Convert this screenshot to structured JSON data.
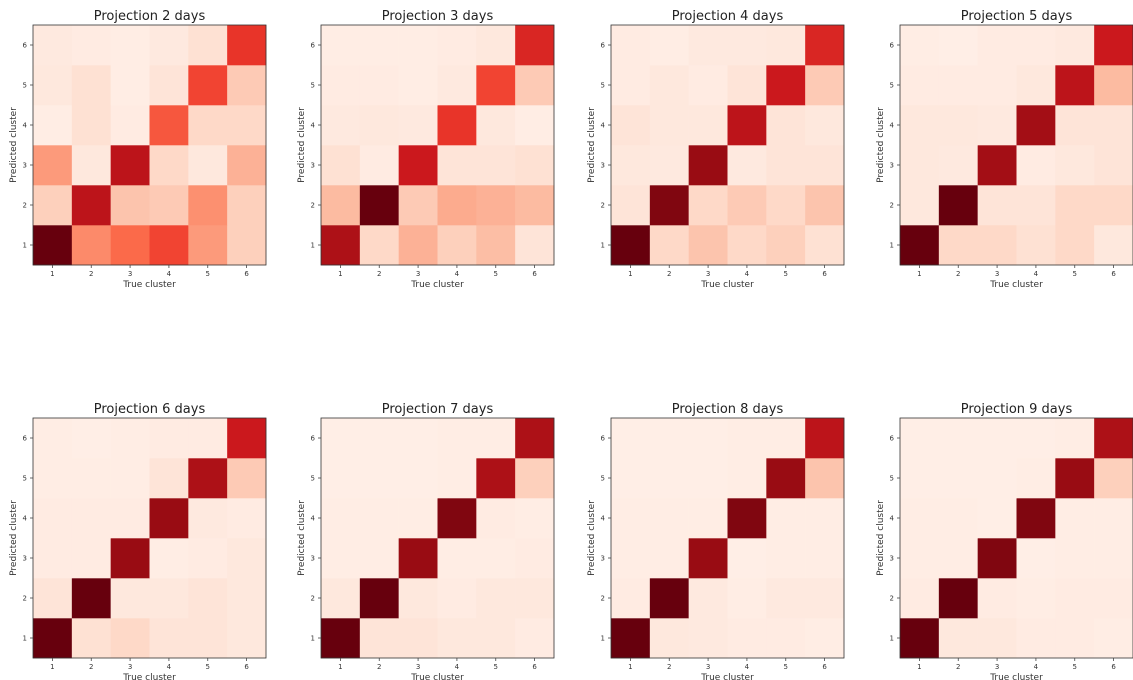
{
  "chart_data": [
    {
      "type": "heatmap",
      "title": "Projection 2 days",
      "xlabel": "True cluster",
      "ylabel": "Predicted cluster",
      "x_ticks": [
        "1",
        "2",
        "3",
        "4",
        "5",
        "6"
      ],
      "y_ticks": [
        "1",
        "2",
        "3",
        "4",
        "5",
        "6"
      ],
      "y_order": "bottom-to-top",
      "values": [
        [
          1.0,
          0.4,
          0.5,
          0.6,
          0.35,
          0.18
        ],
        [
          0.18,
          0.8,
          0.22,
          0.2,
          0.38,
          0.18
        ],
        [
          0.35,
          0.08,
          0.8,
          0.15,
          0.08,
          0.28
        ],
        [
          0.05,
          0.12,
          0.06,
          0.55,
          0.15,
          0.15
        ],
        [
          0.08,
          0.12,
          0.05,
          0.1,
          0.6,
          0.2
        ],
        [
          0.07,
          0.06,
          0.05,
          0.07,
          0.12,
          0.65
        ]
      ]
    },
    {
      "type": "heatmap",
      "title": "Projection 3 days",
      "xlabel": "True cluster",
      "ylabel": "Predicted cluster",
      "x_ticks": [
        "1",
        "2",
        "3",
        "4",
        "5",
        "6"
      ],
      "y_ticks": [
        "1",
        "2",
        "3",
        "4",
        "5",
        "6"
      ],
      "y_order": "bottom-to-top",
      "values": [
        [
          0.85,
          0.15,
          0.28,
          0.18,
          0.24,
          0.1
        ],
        [
          0.25,
          1.0,
          0.2,
          0.3,
          0.28,
          0.25
        ],
        [
          0.12,
          0.06,
          0.75,
          0.1,
          0.1,
          0.12
        ],
        [
          0.07,
          0.08,
          0.07,
          0.65,
          0.08,
          0.05
        ],
        [
          0.06,
          0.06,
          0.05,
          0.07,
          0.6,
          0.2
        ],
        [
          0.05,
          0.05,
          0.05,
          0.06,
          0.08,
          0.7
        ]
      ]
    },
    {
      "type": "heatmap",
      "title": "Projection 4 days",
      "xlabel": "True cluster",
      "ylabel": "Predicted cluster",
      "x_ticks": [
        "1",
        "2",
        "3",
        "4",
        "5",
        "6"
      ],
      "y_ticks": [
        "1",
        "2",
        "3",
        "4",
        "5",
        "6"
      ],
      "y_order": "bottom-to-top",
      "values": [
        [
          1.0,
          0.15,
          0.22,
          0.15,
          0.18,
          0.12
        ],
        [
          0.1,
          0.95,
          0.15,
          0.2,
          0.15,
          0.22
        ],
        [
          0.08,
          0.07,
          0.9,
          0.07,
          0.1,
          0.1
        ],
        [
          0.1,
          0.08,
          0.08,
          0.8,
          0.1,
          0.08
        ],
        [
          0.06,
          0.08,
          0.06,
          0.1,
          0.75,
          0.2
        ],
        [
          0.06,
          0.05,
          0.07,
          0.07,
          0.08,
          0.7
        ]
      ]
    },
    {
      "type": "heatmap",
      "title": "Projection 5 days",
      "xlabel": "True cluster",
      "ylabel": "Predicted cluster",
      "x_ticks": [
        "1",
        "2",
        "3",
        "4",
        "5",
        "6"
      ],
      "y_ticks": [
        "1",
        "2",
        "3",
        "4",
        "5",
        "6"
      ],
      "y_order": "bottom-to-top",
      "values": [
        [
          1.0,
          0.15,
          0.15,
          0.12,
          0.15,
          0.08
        ],
        [
          0.08,
          1.0,
          0.1,
          0.1,
          0.15,
          0.15
        ],
        [
          0.08,
          0.07,
          0.88,
          0.06,
          0.08,
          0.1
        ],
        [
          0.08,
          0.08,
          0.07,
          0.88,
          0.1,
          0.1
        ],
        [
          0.06,
          0.06,
          0.06,
          0.08,
          0.8,
          0.25
        ],
        [
          0.05,
          0.04,
          0.06,
          0.06,
          0.07,
          0.75
        ]
      ]
    },
    {
      "type": "heatmap",
      "title": "Projection 6 days",
      "xlabel": "True cluster",
      "ylabel": "Predicted cluster",
      "x_ticks": [
        "1",
        "2",
        "3",
        "4",
        "5",
        "6"
      ],
      "y_ticks": [
        "1",
        "2",
        "3",
        "4",
        "5",
        "6"
      ],
      "y_order": "bottom-to-top",
      "values": [
        [
          1.0,
          0.12,
          0.15,
          0.1,
          0.1,
          0.08
        ],
        [
          0.1,
          1.0,
          0.08,
          0.08,
          0.1,
          0.08
        ],
        [
          0.06,
          0.06,
          0.9,
          0.05,
          0.06,
          0.08
        ],
        [
          0.06,
          0.06,
          0.06,
          0.9,
          0.07,
          0.06
        ],
        [
          0.05,
          0.05,
          0.05,
          0.1,
          0.85,
          0.2
        ],
        [
          0.05,
          0.04,
          0.05,
          0.06,
          0.06,
          0.75
        ]
      ]
    },
    {
      "type": "heatmap",
      "title": "Projection 7 days",
      "xlabel": "True cluster",
      "ylabel": "Predicted cluster",
      "x_ticks": [
        "1",
        "2",
        "3",
        "4",
        "5",
        "6"
      ],
      "y_ticks": [
        "1",
        "2",
        "3",
        "4",
        "5",
        "6"
      ],
      "y_order": "bottom-to-top",
      "values": [
        [
          1.0,
          0.1,
          0.1,
          0.08,
          0.08,
          0.06
        ],
        [
          0.08,
          1.0,
          0.08,
          0.06,
          0.08,
          0.08
        ],
        [
          0.05,
          0.05,
          0.9,
          0.05,
          0.05,
          0.06
        ],
        [
          0.05,
          0.05,
          0.05,
          0.95,
          0.06,
          0.05
        ],
        [
          0.04,
          0.04,
          0.04,
          0.05,
          0.85,
          0.18
        ],
        [
          0.04,
          0.04,
          0.04,
          0.05,
          0.05,
          0.85
        ]
      ]
    },
    {
      "type": "heatmap",
      "title": "Projection 8 days",
      "xlabel": "True cluster",
      "ylabel": "Predicted cluster",
      "x_ticks": [
        "1",
        "2",
        "3",
        "4",
        "5",
        "6"
      ],
      "y_ticks": [
        "1",
        "2",
        "3",
        "4",
        "5",
        "6"
      ],
      "y_order": "bottom-to-top",
      "values": [
        [
          1.0,
          0.08,
          0.07,
          0.06,
          0.06,
          0.05
        ],
        [
          0.06,
          1.0,
          0.07,
          0.05,
          0.07,
          0.07
        ],
        [
          0.05,
          0.05,
          0.9,
          0.04,
          0.05,
          0.05
        ],
        [
          0.05,
          0.05,
          0.05,
          0.95,
          0.05,
          0.05
        ],
        [
          0.04,
          0.04,
          0.04,
          0.05,
          0.9,
          0.22
        ],
        [
          0.04,
          0.04,
          0.04,
          0.05,
          0.05,
          0.8
        ]
      ]
    },
    {
      "type": "heatmap",
      "title": "Projection 9 days",
      "xlabel": "True cluster",
      "ylabel": "Predicted cluster",
      "x_ticks": [
        "1",
        "2",
        "3",
        "4",
        "5",
        "6"
      ],
      "y_ticks": [
        "1",
        "2",
        "3",
        "4",
        "5",
        "6"
      ],
      "y_order": "bottom-to-top",
      "values": [
        [
          1.0,
          0.08,
          0.08,
          0.06,
          0.06,
          0.05
        ],
        [
          0.06,
          1.0,
          0.06,
          0.05,
          0.06,
          0.06
        ],
        [
          0.05,
          0.05,
          0.95,
          0.04,
          0.05,
          0.05
        ],
        [
          0.05,
          0.05,
          0.04,
          0.95,
          0.05,
          0.05
        ],
        [
          0.04,
          0.04,
          0.04,
          0.05,
          0.9,
          0.18
        ],
        [
          0.04,
          0.04,
          0.04,
          0.04,
          0.05,
          0.85
        ]
      ]
    }
  ],
  "colors": {
    "colormap": "Reds",
    "low": "#fff5f0",
    "high": "#67000d"
  }
}
